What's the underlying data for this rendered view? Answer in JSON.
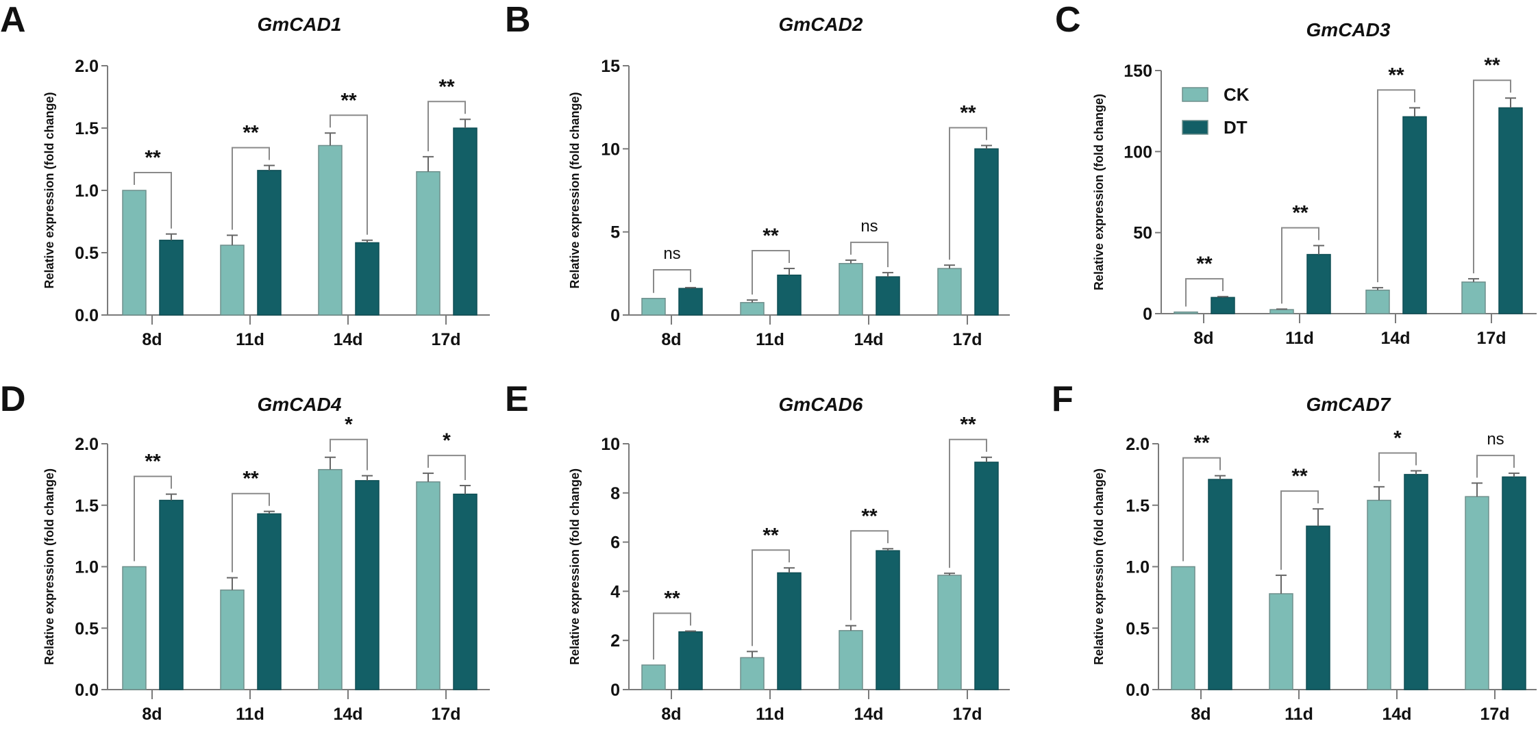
{
  "chart_data": [
    {
      "type": "bar",
      "panel": "A",
      "title": "GmCAD1",
      "ylabel": "Relative expression (fold change)",
      "xlabel": "",
      "categories": [
        "8d",
        "11d",
        "14d",
        "17d"
      ],
      "ylim": [
        0,
        2.0
      ],
      "yticks": [
        "0.0",
        "0.5",
        "1.0",
        "1.5",
        "2.0"
      ],
      "ytick_values": [
        0,
        0.5,
        1,
        1.5,
        2
      ],
      "series": [
        {
          "name": "CK",
          "values": [
            1.0,
            0.56,
            1.36,
            1.15
          ],
          "errors": [
            0,
            0.08,
            0.1,
            0.12
          ]
        },
        {
          "name": "DT",
          "values": [
            0.6,
            1.16,
            0.58,
            1.5
          ],
          "errors": [
            0.05,
            0.04,
            0.02,
            0.07
          ]
        }
      ],
      "significance": [
        "**",
        "**",
        "**",
        "**"
      ]
    },
    {
      "type": "bar",
      "panel": "B",
      "title": "GmCAD2",
      "ylabel": "Relative expression (fold change)",
      "xlabel": "",
      "categories": [
        "8d",
        "11d",
        "14d",
        "17d"
      ],
      "ylim": [
        0,
        15
      ],
      "yticks": [
        "0",
        "5",
        "10",
        "15"
      ],
      "ytick_values": [
        0,
        5,
        10,
        15
      ],
      "series": [
        {
          "name": "CK",
          "values": [
            1.0,
            0.75,
            3.1,
            2.8
          ],
          "errors": [
            0,
            0.15,
            0.2,
            0.2
          ]
        },
        {
          "name": "DT",
          "values": [
            1.6,
            2.4,
            2.3,
            10.0
          ],
          "errors": [
            0.05,
            0.4,
            0.25,
            0.2
          ]
        }
      ],
      "significance": [
        "ns",
        "**",
        "ns",
        "**"
      ]
    },
    {
      "type": "bar",
      "panel": "C",
      "title": "GmCAD3",
      "ylabel": "Relative expression (fold change)",
      "xlabel": "",
      "categories": [
        "8d",
        "11d",
        "14d",
        "17d"
      ],
      "ylim": [
        0,
        150
      ],
      "yticks": [
        "0",
        "50",
        "100",
        "150"
      ],
      "ytick_values": [
        0,
        50,
        100,
        150
      ],
      "series": [
        {
          "name": "CK",
          "values": [
            1.0,
            2.5,
            14.5,
            19.5
          ],
          "errors": [
            0,
            0.3,
            1.5,
            2
          ]
        },
        {
          "name": "DT",
          "values": [
            10,
            36.5,
            121.5,
            127
          ],
          "errors": [
            0.5,
            5.5,
            5.5,
            6
          ]
        }
      ],
      "significance": [
        "**",
        "**",
        "**",
        "**"
      ],
      "legend": {
        "placement": "top-left",
        "entries": [
          "CK",
          "DT"
        ]
      }
    },
    {
      "type": "bar",
      "panel": "D",
      "title": "GmCAD4",
      "ylabel": "Relative expression (fold change)",
      "xlabel": "",
      "categories": [
        "8d",
        "11d",
        "14d",
        "17d"
      ],
      "ylim": [
        0,
        2.0
      ],
      "yticks": [
        "0.0",
        "0.5",
        "1.0",
        "1.5",
        "2.0"
      ],
      "ytick_values": [
        0,
        0.5,
        1,
        1.5,
        2
      ],
      "series": [
        {
          "name": "CK",
          "values": [
            1.0,
            0.81,
            1.79,
            1.69
          ],
          "errors": [
            0,
            0.1,
            0.1,
            0.07
          ]
        },
        {
          "name": "DT",
          "values": [
            1.54,
            1.43,
            1.7,
            1.59
          ],
          "errors": [
            0.05,
            0.02,
            0.04,
            0.07
          ]
        }
      ],
      "significance": [
        "**",
        "**",
        "*",
        "*"
      ]
    },
    {
      "type": "bar",
      "panel": "E",
      "title": "GmCAD6",
      "ylabel": "Relative expression (fold change)",
      "xlabel": "",
      "categories": [
        "8d",
        "11d",
        "14d",
        "17d"
      ],
      "ylim": [
        0,
        10
      ],
      "yticks": [
        "0",
        "2",
        "4",
        "6",
        "8",
        "10"
      ],
      "ytick_values": [
        0,
        2,
        4,
        6,
        8,
        10
      ],
      "series": [
        {
          "name": "CK",
          "values": [
            1.0,
            1.3,
            2.4,
            4.65
          ],
          "errors": [
            0,
            0.25,
            0.2,
            0.08
          ]
        },
        {
          "name": "DT",
          "values": [
            2.35,
            4.75,
            5.65,
            9.25
          ],
          "errors": [
            0.03,
            0.2,
            0.08,
            0.2
          ]
        }
      ],
      "significance": [
        "**",
        "**",
        "**",
        "**"
      ]
    },
    {
      "type": "bar",
      "panel": "F",
      "title": "GmCAD7",
      "ylabel": "Relative expression (fold change)",
      "xlabel": "",
      "categories": [
        "8d",
        "11d",
        "14d",
        "17d"
      ],
      "ylim": [
        0,
        2.0
      ],
      "yticks": [
        "0.0",
        "0.5",
        "1.0",
        "1.5",
        "2.0"
      ],
      "ytick_values": [
        0,
        0.5,
        1,
        1.5,
        2
      ],
      "series": [
        {
          "name": "CK",
          "values": [
            1.0,
            0.78,
            1.54,
            1.57
          ],
          "errors": [
            0,
            0.15,
            0.11,
            0.11
          ]
        },
        {
          "name": "DT",
          "values": [
            1.71,
            1.33,
            1.75,
            1.73
          ],
          "errors": [
            0.03,
            0.14,
            0.03,
            0.03
          ]
        }
      ],
      "significance": [
        "**",
        "**",
        "*",
        "ns"
      ]
    }
  ],
  "colors": {
    "CK": "#7dbcb5",
    "DT": "#135f66",
    "axis": "#7a7a7a",
    "bracket": "#8a8a8a"
  }
}
